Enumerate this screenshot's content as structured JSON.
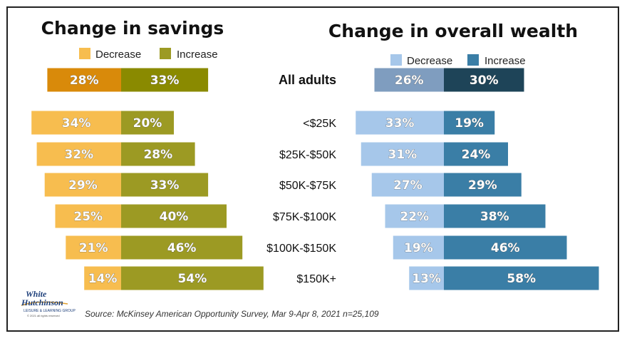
{
  "source_note": "Source: McKinsey American Opportunity Survey, Mar 9-Apr 8, 2021 n=25,109",
  "logo": {
    "line1": "White",
    "line2": "Hutchinson",
    "tagline": "LEISURE & LEARNING GROUP",
    "copyright": "© 2021 all rights reserved"
  },
  "colors": {
    "savings_decrease": "#f7bd4f",
    "savings_increase": "#9c9a23",
    "savings_decrease_all": "#d98a0a",
    "savings_increase_all": "#8a8a00",
    "wealth_decrease": "#a6c7ea",
    "wealth_increase": "#3a7ea6",
    "wealth_decrease_all": "#7f9dbf",
    "wealth_increase_all": "#1e4458"
  },
  "chart_data": [
    {
      "type": "bar",
      "orientation": "horizontal-diverging",
      "title": "Change in savings",
      "legend_position": "top",
      "categories": [
        "All adults",
        "<$25K",
        "$25K-$50K",
        "$50K-$75K",
        "$75K-$100K",
        "$100K-$150K",
        "$150K+"
      ],
      "series": [
        {
          "name": "Decrease",
          "values": [
            28,
            34,
            32,
            29,
            25,
            21,
            14
          ]
        },
        {
          "name": "Increase",
          "values": [
            33,
            20,
            28,
            33,
            40,
            46,
            54
          ]
        }
      ],
      "value_suffix": "%"
    },
    {
      "type": "bar",
      "orientation": "horizontal-diverging",
      "title": "Change in overall wealth",
      "legend_position": "top",
      "categories": [
        "All adults",
        "<$25K",
        "$25K-$50K",
        "$50K-$75K",
        "$75K-$100K",
        "$100K-$150K",
        "$150K+"
      ],
      "series": [
        {
          "name": "Decrease",
          "values": [
            26,
            33,
            31,
            27,
            22,
            19,
            13
          ]
        },
        {
          "name": "Increase",
          "values": [
            30,
            19,
            24,
            29,
            38,
            46,
            58
          ]
        }
      ],
      "value_suffix": "%"
    }
  ]
}
